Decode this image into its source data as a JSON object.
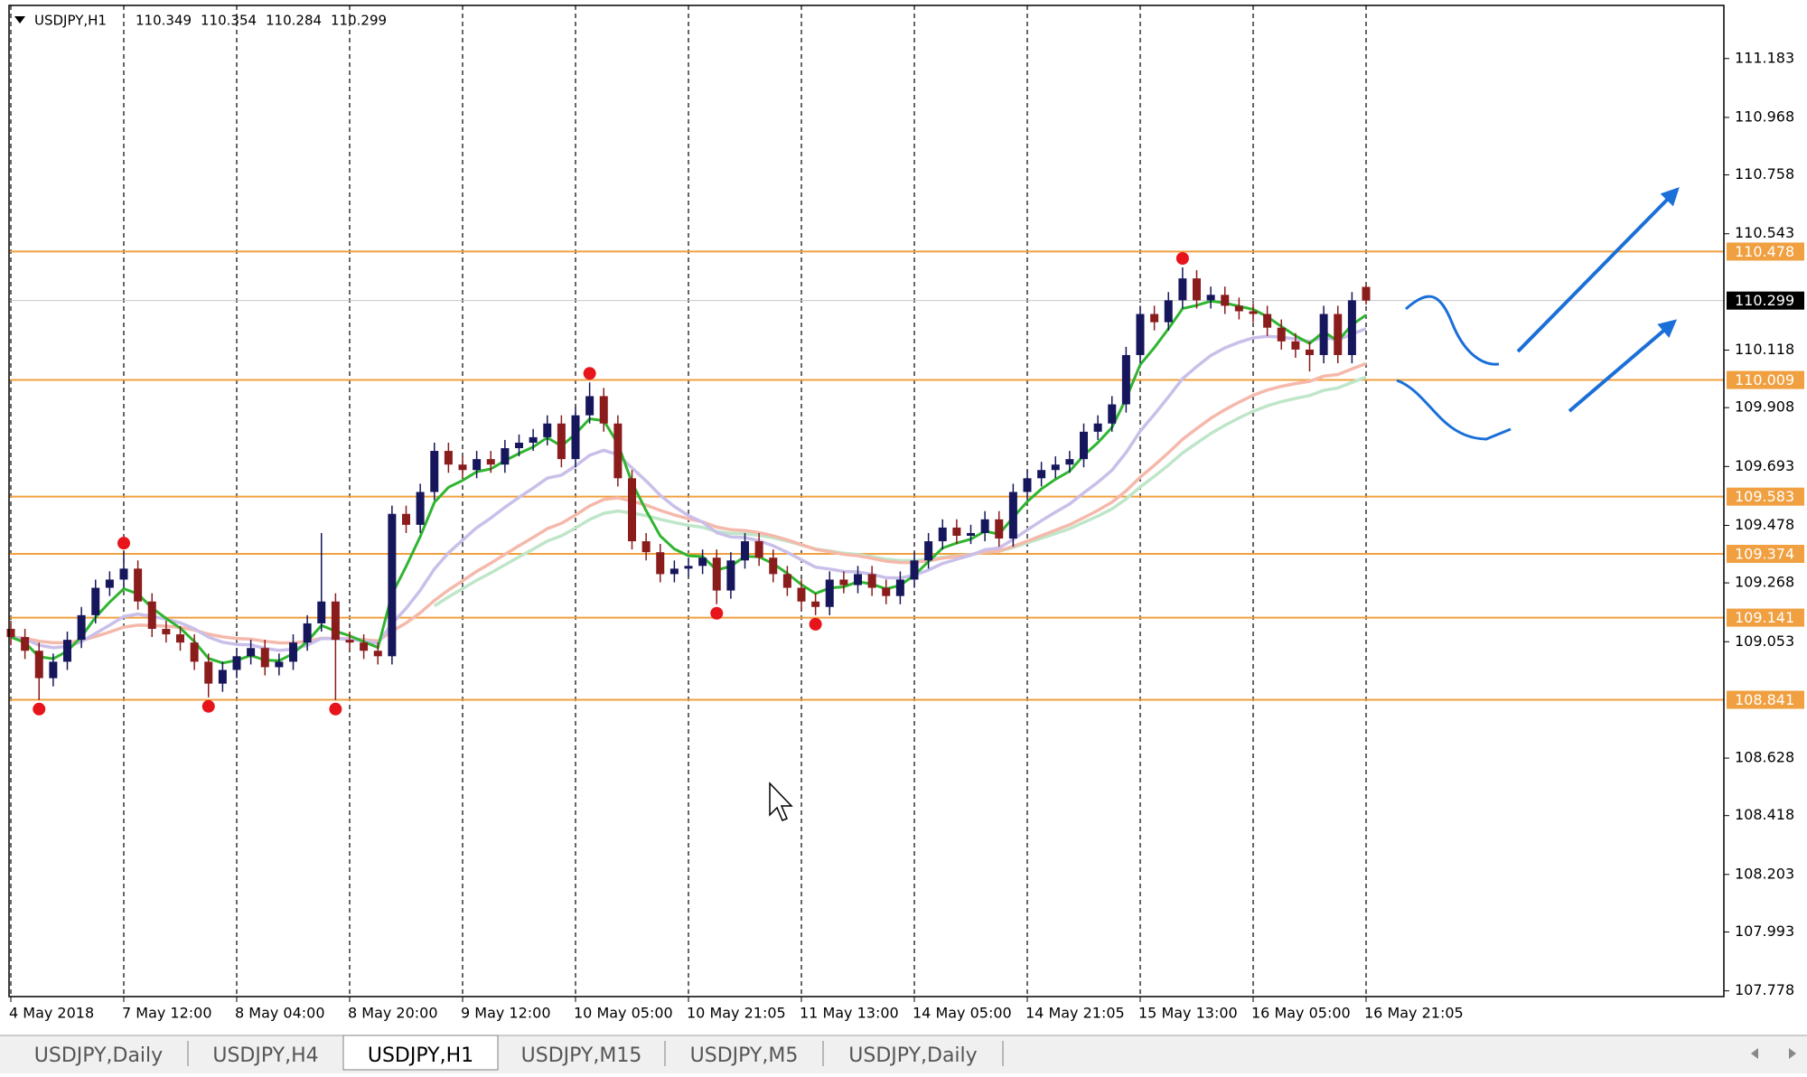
{
  "chart_data": {
    "type": "candlestick",
    "title": "USDJPY,H1",
    "categories": [
      "4 May 2018",
      null,
      null,
      null,
      null,
      null,
      null,
      null,
      "7 May 12:00",
      null,
      null,
      null,
      null,
      null,
      null,
      null,
      "8 May 04:00",
      null,
      null,
      null,
      null,
      null,
      null,
      null,
      "8 May 20:00",
      null,
      null,
      null,
      null,
      null,
      null,
      null,
      "9 May 12:00",
      null,
      null,
      null,
      null,
      null,
      null,
      null,
      "10 May 05:00",
      null,
      null,
      null,
      null,
      null,
      null,
      null,
      "10 May 21:05",
      null,
      null,
      null,
      null,
      null,
      null,
      null,
      "11 May 13:00",
      null,
      null,
      null,
      null,
      null,
      null,
      null,
      "14 May 05:00",
      null,
      null,
      null,
      null,
      null,
      null,
      null,
      "14 May 21:05",
      null,
      null,
      null,
      null,
      null,
      null,
      null,
      "15 May 13:00",
      null,
      null,
      null,
      null,
      null,
      null,
      null,
      "16 May 05:00",
      null,
      null,
      null,
      null,
      null,
      null,
      null,
      "16 May 21:05"
    ],
    "open": [
      109.1,
      109.07,
      109.02,
      108.92,
      108.98,
      109.06,
      109.15,
      109.25,
      109.28,
      109.32,
      109.2,
      109.1,
      109.08,
      109.05,
      108.98,
      108.9,
      108.95,
      109.0,
      109.03,
      108.96,
      108.98,
      109.05,
      109.12,
      109.2,
      109.06,
      109.05,
      109.02,
      109.0,
      109.52,
      109.48,
      109.6,
      109.75,
      109.7,
      109.68,
      109.72,
      109.7,
      109.76,
      109.78,
      109.8,
      109.85,
      109.72,
      109.88,
      109.95,
      109.85,
      109.65,
      109.42,
      109.38,
      109.3,
      109.32,
      109.33,
      109.36,
      109.24,
      109.35,
      109.42,
      109.36,
      109.3,
      109.25,
      109.2,
      109.18,
      109.28,
      109.26,
      109.3,
      109.25,
      109.22,
      109.28,
      109.35,
      109.42,
      109.47,
      109.44,
      109.45,
      109.5,
      109.43,
      109.6,
      109.65,
      109.68,
      109.7,
      109.72,
      109.82,
      109.85,
      109.92,
      110.1,
      110.25,
      110.22,
      110.3,
      110.38,
      110.3,
      110.32,
      110.28,
      110.26,
      110.25,
      110.2,
      110.15,
      110.12,
      110.1,
      110.25,
      110.1,
      110.349
    ],
    "high": [
      109.13,
      109.1,
      109.05,
      109.01,
      109.09,
      109.18,
      109.28,
      109.31,
      109.38,
      109.35,
      109.23,
      109.13,
      109.11,
      109.08,
      109.01,
      108.98,
      109.03,
      109.06,
      109.06,
      109.01,
      109.08,
      109.15,
      109.45,
      109.23,
      109.09,
      109.08,
      109.05,
      109.55,
      109.55,
      109.63,
      109.78,
      109.78,
      109.73,
      109.75,
      109.75,
      109.79,
      109.81,
      109.83,
      109.88,
      109.88,
      109.91,
      110.0,
      109.98,
      109.88,
      109.68,
      109.45,
      109.41,
      109.35,
      109.36,
      109.39,
      109.39,
      109.38,
      109.45,
      109.45,
      109.39,
      109.33,
      109.28,
      109.23,
      109.31,
      109.31,
      109.33,
      109.33,
      109.28,
      109.31,
      109.38,
      109.45,
      109.5,
      109.5,
      109.48,
      109.53,
      109.53,
      109.63,
      109.68,
      109.71,
      109.73,
      109.75,
      109.85,
      109.88,
      109.95,
      110.13,
      110.28,
      110.28,
      110.33,
      110.42,
      110.41,
      110.35,
      110.35,
      110.31,
      110.29,
      110.28,
      110.23,
      110.18,
      110.15,
      110.28,
      110.28,
      110.33,
      110.354
    ],
    "low": [
      109.04,
      108.99,
      108.84,
      108.89,
      108.95,
      109.03,
      109.12,
      109.22,
      109.25,
      109.17,
      109.07,
      109.05,
      109.02,
      108.95,
      108.85,
      108.87,
      108.92,
      108.97,
      108.93,
      108.93,
      108.95,
      109.02,
      109.09,
      108.84,
      109.02,
      108.99,
      108.97,
      108.97,
      109.45,
      109.45,
      109.57,
      109.67,
      109.65,
      109.65,
      109.67,
      109.67,
      109.73,
      109.75,
      109.77,
      109.69,
      109.69,
      109.85,
      109.82,
      109.62,
      109.39,
      109.35,
      109.27,
      109.27,
      109.29,
      109.3,
      109.19,
      109.21,
      109.32,
      109.33,
      109.27,
      109.22,
      109.17,
      109.15,
      109.15,
      109.23,
      109.23,
      109.22,
      109.19,
      109.19,
      109.25,
      109.32,
      109.39,
      109.41,
      109.41,
      109.42,
      109.4,
      109.4,
      109.57,
      109.62,
      109.65,
      109.67,
      109.69,
      109.79,
      109.82,
      109.89,
      110.07,
      110.19,
      110.19,
      110.27,
      110.27,
      110.27,
      110.25,
      110.23,
      110.22,
      110.17,
      110.12,
      110.09,
      110.04,
      110.07,
      110.07,
      110.07,
      110.284
    ],
    "close": [
      109.07,
      109.02,
      108.92,
      108.98,
      109.06,
      109.15,
      109.25,
      109.28,
      109.32,
      109.2,
      109.1,
      109.08,
      109.05,
      108.98,
      108.9,
      108.95,
      109.0,
      109.03,
      108.96,
      108.98,
      109.05,
      109.12,
      109.2,
      109.06,
      109.05,
      109.02,
      109.0,
      109.52,
      109.48,
      109.6,
      109.75,
      109.7,
      109.68,
      109.72,
      109.7,
      109.76,
      109.78,
      109.8,
      109.85,
      109.72,
      109.88,
      109.95,
      109.85,
      109.65,
      109.42,
      109.38,
      109.3,
      109.32,
      109.33,
      109.36,
      109.24,
      109.35,
      109.42,
      109.36,
      109.3,
      109.25,
      109.2,
      109.18,
      109.28,
      109.26,
      109.3,
      109.25,
      109.22,
      109.28,
      109.35,
      109.42,
      109.47,
      109.44,
      109.45,
      109.5,
      109.43,
      109.6,
      109.65,
      109.68,
      109.7,
      109.72,
      109.82,
      109.85,
      109.92,
      110.1,
      110.25,
      110.22,
      110.3,
      110.38,
      110.3,
      110.32,
      110.28,
      110.26,
      110.25,
      110.2,
      110.15,
      110.12,
      110.1,
      110.25,
      110.1,
      110.3,
      110.299
    ],
    "up_color": "#16165c",
    "down_color": "#8a1c1c",
    "fractals": [
      {
        "index": 2,
        "at": "low"
      },
      {
        "index": 8,
        "at": "high"
      },
      {
        "index": 14,
        "at": "low"
      },
      {
        "index": 23,
        "at": "low"
      },
      {
        "index": 41,
        "at": "high"
      },
      {
        "index": 50,
        "at": "low"
      },
      {
        "index": 57,
        "at": "low"
      },
      {
        "index": 83,
        "at": "high"
      }
    ],
    "fractal_color": "#e8141b",
    "levels": [
      110.478,
      110.009,
      109.583,
      109.374,
      109.141,
      108.841
    ],
    "level_color": "#f0a040",
    "current_price": 110.299,
    "ylim": [
      107.757,
      111.377
    ],
    "yticks": [
      111.183,
      110.968,
      110.758,
      110.543,
      110.118,
      109.908,
      109.693,
      109.478,
      109.268,
      109.053,
      108.628,
      108.418,
      108.203,
      107.993,
      107.778
    ],
    "grid": true
  },
  "tabs": [
    "USDJPY,Daily",
    "USDJPY,H4",
    "USDJPY,H1",
    "USDJPY,M15",
    "USDJPY,M5",
    "USDJPY,Daily"
  ],
  "active_tab": 2
}
